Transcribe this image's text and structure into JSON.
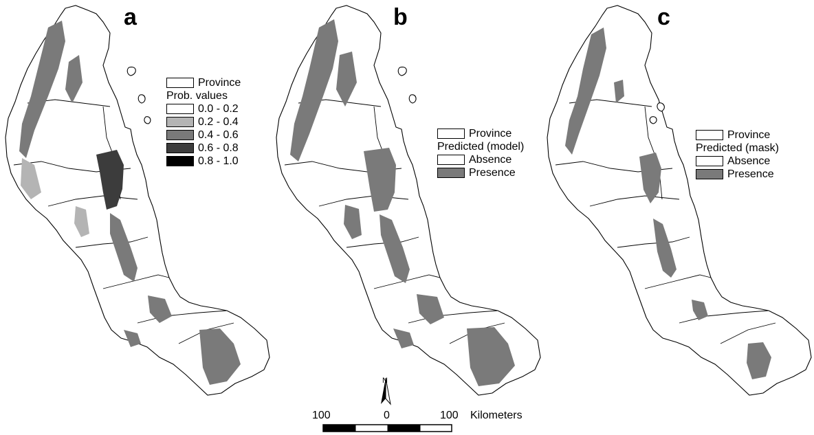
{
  "panels": [
    {
      "letter": "a",
      "legend": {
        "boundary_label": "Province",
        "title": "Prob. values",
        "classes": [
          {
            "label": "0.0 - 0.2",
            "color": "#ffffff"
          },
          {
            "label": "0.2 - 0.4",
            "color": "#b4b4b4"
          },
          {
            "label": "0.4 - 0.6",
            "color": "#7a7a7a"
          },
          {
            "label": "0.6 - 0.8",
            "color": "#3c3c3c"
          },
          {
            "label": "0.8 - 1.0",
            "color": "#000000"
          }
        ]
      }
    },
    {
      "letter": "b",
      "legend": {
        "boundary_label": "Province",
        "title": "Predicted (model)",
        "classes": [
          {
            "label": "Absence",
            "color": "#ffffff"
          },
          {
            "label": "Presence",
            "color": "#7a7a7a"
          }
        ]
      }
    },
    {
      "letter": "c",
      "legend": {
        "boundary_label": "Province",
        "title": "Predicted (mask)",
        "classes": [
          {
            "label": "Absence",
            "color": "#ffffff"
          },
          {
            "label": "Presence",
            "color": "#7a7a7a"
          }
        ]
      }
    }
  ],
  "north_arrow": {
    "label": "N"
  },
  "scale_bar": {
    "labels": [
      "100",
      "0",
      "100"
    ],
    "units": "Kilometers"
  },
  "colors": {
    "outline": "#000000",
    "habitat_mid": "#7a7a7a",
    "habitat_high": "#3c3c3c",
    "habitat_low": "#b4b4b4",
    "background": "#ffffff"
  }
}
